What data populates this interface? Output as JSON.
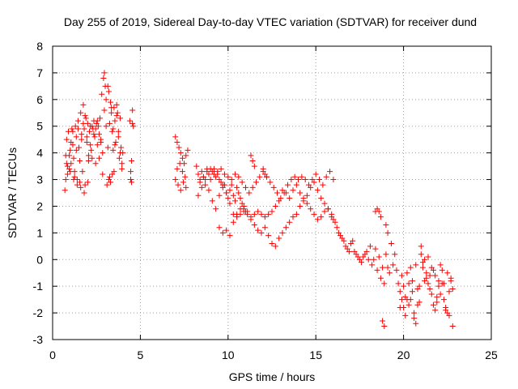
{
  "chart_data": {
    "type": "scatter",
    "title": "Day 255 of 2019, Sidereal Day-to-day VTEC variation (SDTVAR) for receiver dund",
    "xlabel": "GPS time / hours",
    "ylabel": "SDTVAR / TECUs",
    "xlim": [
      0,
      25
    ],
    "ylim": [
      -3,
      8
    ],
    "xticks": [
      0,
      5,
      10,
      15,
      20,
      25
    ],
    "yticks": [
      -3,
      -2,
      -1,
      0,
      1,
      2,
      3,
      4,
      5,
      6,
      7,
      8
    ],
    "grid": true,
    "marker": "plus",
    "color": "#ff0000",
    "series": [
      {
        "name": "SDTVAR",
        "x": [
          0.7,
          0.75,
          0.8,
          0.85,
          0.9,
          0.95,
          1.0,
          1.05,
          1.1,
          1.15,
          1.2,
          1.25,
          1.3,
          1.35,
          1.4,
          1.45,
          1.5,
          1.55,
          1.6,
          1.65,
          1.7,
          1.75,
          1.8,
          1.85,
          1.9,
          1.95,
          2.0,
          2.05,
          2.1,
          2.15,
          2.2,
          2.25,
          2.3,
          2.35,
          2.4,
          2.45,
          2.5,
          2.55,
          2.6,
          2.65,
          2.7,
          2.75,
          2.8,
          2.85,
          2.9,
          2.95,
          3.0,
          3.05,
          3.1,
          3.15,
          3.2,
          3.25,
          3.3,
          3.35,
          3.4,
          3.45,
          3.5,
          3.55,
          3.6,
          3.65,
          3.7,
          3.75,
          3.8,
          3.85,
          3.9,
          3.95,
          4.0,
          4.4,
          4.45,
          4.5,
          4.55,
          4.6,
          0.75,
          0.85,
          0.95,
          1.05,
          1.15,
          1.25,
          1.35,
          1.45,
          1.55,
          1.65,
          1.75,
          1.85,
          1.95,
          2.05,
          2.15,
          2.25,
          2.35,
          2.45,
          2.55,
          2.65,
          2.75,
          2.85,
          2.95,
          3.05,
          3.15,
          3.25,
          3.35,
          3.45,
          3.55,
          3.65,
          3.75,
          3.85,
          3.95,
          4.45,
          4.55,
          0.8,
          1.0,
          1.2,
          1.4,
          1.6,
          1.8,
          2.0,
          3.2,
          3.3,
          3.4,
          3.5,
          4.5,
          7.0,
          7.1,
          7.2,
          7.3,
          7.4,
          7.5,
          7.6,
          7.7,
          7.0,
          7.15,
          7.3,
          7.45,
          7.6,
          7.1,
          7.25,
          7.4,
          7.55,
          8.2,
          8.3,
          8.4,
          8.5,
          8.6,
          8.7,
          8.8,
          8.9,
          9.0,
          9.1,
          9.2,
          9.3,
          9.4,
          9.5,
          9.6,
          9.7,
          9.8,
          9.9,
          10.0,
          10.1,
          10.2,
          10.3,
          10.4,
          10.5,
          10.6,
          10.7,
          10.8,
          10.9,
          11.0,
          8.3,
          8.5,
          8.7,
          8.9,
          9.1,
          9.3,
          9.5,
          9.7,
          9.9,
          10.1,
          10.3,
          10.5,
          10.7,
          10.9,
          11.1,
          11.3,
          11.5,
          11.7,
          11.9,
          12.1,
          12.3,
          12.5,
          12.7,
          12.9,
          13.1,
          13.3,
          13.5,
          13.7,
          13.9,
          14.1,
          14.3,
          14.5,
          14.7,
          14.9,
          15.1,
          15.3,
          15.5,
          15.7,
          15.9,
          16.1,
          8.4,
          8.6,
          8.8,
          9.0,
          9.2,
          9.4,
          9.6,
          9.8,
          10.0,
          10.2,
          10.4,
          10.6,
          10.8,
          11.0,
          11.2,
          11.4,
          11.6,
          11.8,
          12.0,
          12.2,
          12.4,
          12.6,
          12.8,
          13.0,
          13.2,
          13.4,
          13.6,
          13.8,
          14.0,
          14.2,
          14.4,
          14.6,
          14.8,
          15.0,
          15.2,
          15.4,
          15.6,
          15.8,
          16.0,
          9.5,
          9.7,
          9.9,
          10.1,
          10.3,
          10.5,
          10.7,
          10.9,
          11.1,
          11.3,
          11.5,
          11.7,
          11.9,
          12.1,
          12.3,
          12.5,
          12.7,
          12.9,
          13.1,
          13.3,
          13.5,
          13.7,
          13.9,
          14.1,
          14.3,
          14.5,
          14.7,
          14.9,
          15.1,
          15.3,
          15.5,
          15.7,
          15.9,
          11.3,
          11.4,
          11.5,
          12.0,
          12.1,
          12.2,
          16.0,
          16.2,
          16.4,
          16.6,
          16.8,
          17.0,
          17.2,
          17.4,
          17.6,
          17.8,
          18.0,
          18.2,
          18.4,
          18.6,
          18.8,
          19.0,
          19.2,
          19.4,
          16.3,
          16.5,
          16.7,
          16.9,
          17.1,
          17.3,
          17.5,
          17.7,
          17.9,
          18.1,
          18.3,
          18.5,
          18.7,
          18.9,
          19.1,
          19.3,
          18.5,
          18.6,
          18.7,
          18.8,
          18.9,
          19.0,
          19.1,
          18.4,
          19.5,
          19.6,
          19.7,
          19.8,
          19.9,
          20.0,
          20.1,
          20.2,
          20.3,
          20.4,
          20.5,
          20.6,
          20.7,
          20.8,
          20.9,
          21.0,
          21.1,
          21.2,
          21.3,
          21.4,
          21.5,
          21.6,
          21.7,
          21.8,
          21.9,
          22.0,
          22.1,
          22.2,
          22.3,
          22.4,
          22.5,
          22.6,
          22.7,
          22.8,
          19.8,
          20.0,
          20.2,
          20.4,
          20.6,
          20.8,
          21.0,
          21.2,
          21.4,
          21.6,
          21.8,
          22.0,
          22.2,
          22.4,
          22.6,
          22.8,
          19.9,
          20.1,
          20.3,
          20.5,
          20.7,
          20.9,
          21.1,
          21.3,
          21.5,
          21.7,
          21.9,
          22.1,
          22.3,
          22.5,
          22.7
        ],
        "y": [
          2.6,
          3.9,
          4.5,
          3.2,
          4.8,
          3.4,
          4.1,
          3.6,
          4.9,
          4.3,
          3.8,
          3.1,
          5.0,
          4.6,
          3.0,
          5.2,
          4.2,
          2.9,
          5.5,
          4.7,
          3.3,
          5.8,
          4.9,
          2.8,
          5.3,
          4.4,
          5.1,
          3.7,
          4.8,
          5.0,
          4.1,
          3.8,
          4.9,
          5.2,
          4.6,
          3.6,
          5.1,
          4.3,
          5.0,
          4.7,
          5.3,
          4.5,
          6.2,
          3.2,
          6.8,
          7.0,
          6.5,
          5.0,
          2.8,
          4.2,
          6.3,
          3.1,
          5.9,
          5.5,
          4.8,
          4.1,
          5.7,
          5.2,
          4.4,
          5.8,
          5.5,
          4.6,
          3.8,
          5.3,
          4.2,
          3.6,
          4.0,
          5.2,
          3.3,
          3.7,
          5.6,
          5.0,
          3.0,
          3.5,
          3.9,
          4.4,
          4.8,
          3.3,
          4.1,
          4.9,
          3.7,
          4.5,
          5.1,
          5.4,
          4.6,
          3.9,
          4.3,
          5.0,
          4.7,
          4.9,
          5.2,
          3.8,
          4.4,
          4.0,
          5.6,
          6.0,
          6.5,
          5.1,
          5.7,
          4.9,
          4.3,
          5.4,
          4.8,
          4.0,
          3.4,
          3.0,
          5.1,
          3.6,
          3.3,
          3.0,
          2.8,
          2.7,
          2.5,
          2.9,
          3.0,
          2.9,
          3.2,
          3.3,
          2.9,
          4.6,
          4.4,
          4.2,
          4.0,
          3.8,
          3.6,
          3.9,
          4.1,
          3.0,
          2.8,
          2.6,
          2.9,
          2.7,
          3.4,
          3.6,
          3.3,
          3.1,
          3.5,
          3.2,
          2.9,
          3.3,
          3.1,
          2.8,
          3.4,
          3.2,
          3.0,
          3.3,
          3.4,
          3.1,
          3.2,
          3.0,
          2.9,
          2.7,
          2.8,
          2.5,
          2.3,
          2.6,
          2.8,
          2.4,
          2.2,
          2.7,
          2.5,
          2.3,
          2.1,
          1.9,
          1.8,
          2.4,
          2.7,
          3.0,
          2.6,
          2.2,
          1.9,
          2.4,
          2.8,
          2.5,
          2.1,
          1.7,
          1.6,
          1.7,
          1.8,
          1.7,
          1.5,
          1.7,
          1.8,
          1.7,
          1.6,
          1.7,
          1.8,
          2.0,
          2.2,
          2.6,
          2.5,
          2.3,
          2.6,
          2.8,
          2.5,
          2.2,
          2.4,
          2.7,
          2.9,
          2.6,
          2.3,
          2.1,
          1.9,
          1.6,
          1.4,
          3.0,
          3.1,
          3.3,
          3.4,
          3.2,
          3.3,
          3.4,
          3.2,
          3.1,
          3.0,
          3.2,
          3.1,
          2.9,
          2.7,
          2.5,
          2.7,
          2.9,
          3.1,
          3.3,
          3.1,
          2.9,
          2.7,
          2.5,
          2.3,
          2.5,
          2.8,
          3.0,
          3.1,
          3.0,
          3.1,
          3.0,
          2.8,
          3.0,
          3.2,
          3.0,
          2.8,
          3.1,
          3.3,
          3.0,
          1.2,
          1.0,
          1.1,
          0.9,
          1.4,
          1.7,
          1.9,
          2.0,
          1.8,
          1.6,
          1.3,
          1.1,
          1.0,
          1.2,
          0.9,
          0.6,
          0.5,
          0.8,
          1.0,
          1.2,
          1.4,
          1.6,
          1.7,
          2.0,
          2.3,
          2.1,
          1.9,
          1.7,
          1.5,
          1.6,
          1.8,
          1.9,
          1.7,
          3.9,
          3.7,
          3.5,
          3.4,
          3.2,
          3.1,
          1.5,
          1.2,
          0.9,
          0.7,
          0.4,
          0.6,
          0.3,
          0.1,
          -0.1,
          0.2,
          0.0,
          -0.2,
          0.4,
          0.1,
          -0.3,
          0.2,
          -0.5,
          -0.2,
          1.0,
          0.8,
          0.5,
          0.3,
          0.7,
          0.2,
          0.0,
          0.1,
          0.3,
          0.5,
          0.0,
          -0.4,
          -0.7,
          -0.9,
          -0.3,
          0.6,
          1.9,
          1.8,
          1.6,
          -2.3,
          -2.5,
          1.3,
          1.0,
          1.8,
          0.2,
          -0.4,
          -0.9,
          -1.2,
          -1.5,
          -1.8,
          -2.1,
          -1.5,
          -0.9,
          -0.3,
          -1.2,
          -2.0,
          -2.4,
          -1.7,
          -1.0,
          0.5,
          -0.3,
          -0.8,
          -0.5,
          0.1,
          -0.6,
          -1.3,
          -1.7,
          -1.9,
          -1.4,
          -0.8,
          -0.2,
          -0.9,
          -1.5,
          -1.8,
          -2.0,
          -1.2,
          -0.7,
          -2.5,
          -1.8,
          -1.0,
          -0.5,
          -1.5,
          -2.2,
          -1.1,
          0.2,
          0.0,
          -0.9,
          -0.3,
          -0.6,
          -1.0,
          -0.4,
          -1.9,
          -2.1,
          -1.1,
          -0.6,
          -1.4,
          -1.7,
          -0.8,
          -0.2,
          -1.6,
          -0.1,
          -0.7,
          -1.1,
          -0.4,
          -1.6,
          -1.3,
          -0.9,
          -0.5,
          -0.8
        ]
      }
    ]
  }
}
